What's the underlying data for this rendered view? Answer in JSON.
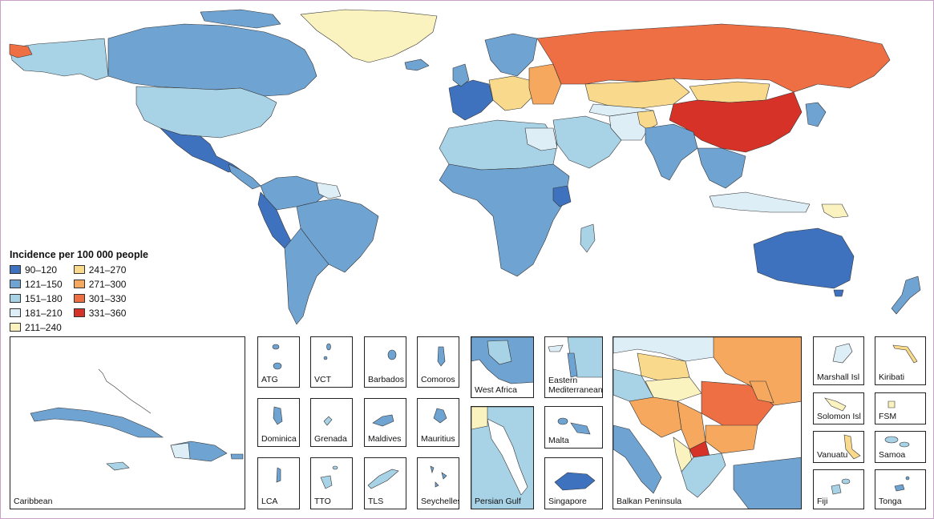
{
  "legend": {
    "title": "Incidence per 100 000 people",
    "items": [
      {
        "label": "90–120",
        "color": "#3f72be"
      },
      {
        "label": "121–150",
        "color": "#6fa3d2"
      },
      {
        "label": "151–180",
        "color": "#a8d2e6"
      },
      {
        "label": "181–210",
        "color": "#ddeef7"
      },
      {
        "label": "211–240",
        "color": "#fbf3bf"
      },
      {
        "label": "241–270",
        "color": "#f9d98b"
      },
      {
        "label": "271–300",
        "color": "#f5a85e"
      },
      {
        "label": "301–330",
        "color": "#ef6f45"
      },
      {
        "label": "331–360",
        "color": "#d63228"
      }
    ]
  },
  "insets": {
    "caribbean": "Caribbean",
    "atg": "ATG",
    "vct": "VCT",
    "barbados": "Barbados",
    "comoros": "Comoros",
    "dominica": "Dominica",
    "grenada": "Grenada",
    "maldives": "Maldives",
    "mauritius": "Mauritius",
    "lca": "LCA",
    "tto": "TTO",
    "tls": "TLS",
    "seychelles": "Seychelles",
    "west_africa": "West Africa",
    "eastern_mediterranean": "Eastern Mediterranean",
    "persian_gulf": "Persian Gulf",
    "malta": "Malta",
    "singapore": "Singapore",
    "balkan": "Balkan Peninsula",
    "marshall": "Marshall Isl",
    "kiribati": "Kiribati",
    "solomon": "Solomon Isl",
    "fsm": "FSM",
    "vanuatu": "Vanuatu",
    "samoa": "Samoa",
    "fiji": "Fiji",
    "tonga": "Tonga"
  }
}
